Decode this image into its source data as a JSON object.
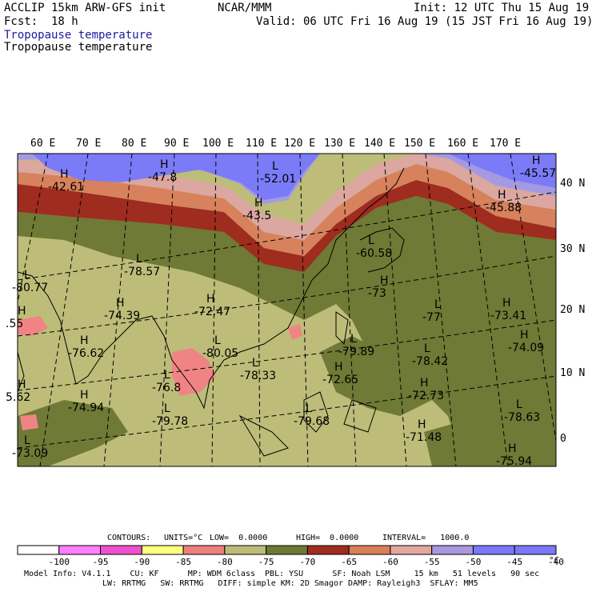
{
  "header": {
    "model": "ACCLIP 15km ARW-GFS init",
    "org": "NCAR/MMM",
    "init": "Init: 12 UTC Thu 15 Aug 19",
    "fcst_label": "Fcst:",
    "fcst_value": "18 h",
    "valid": "Valid: 06 UTC Fri 16 Aug 19 (15 JST Fri 16 Aug 19)",
    "field_title_1": "Tropopause temperature",
    "field_title_2": "Tropopause temperature"
  },
  "lon_ticks": [
    "60 E",
    "70 E",
    "80 E",
    "90 E",
    "100 E",
    "110 E",
    "120 E",
    "130 E",
    "140 E",
    "150 E",
    "160 E",
    "170 E"
  ],
  "lat_ticks": [
    "40 N",
    "30 N",
    "20 N",
    "10 N",
    "0"
  ],
  "extrema": [
    {
      "type": "H",
      "value": "-42.61"
    },
    {
      "type": "H",
      "value": "-47.8"
    },
    {
      "type": "L",
      "value": "-52.01"
    },
    {
      "type": "H",
      "value": "-43.5"
    },
    {
      "type": "H",
      "value": "-45.57"
    },
    {
      "type": "H",
      "value": "-45.88"
    },
    {
      "type": "L",
      "value": "-60.58"
    },
    {
      "type": "L",
      "value": "-78.57"
    },
    {
      "type": "L",
      "value": "-80.77"
    },
    {
      "type": "H",
      "value": "-74.39"
    },
    {
      "type": "H",
      "value": "-72.47"
    },
    {
      "type": "H",
      "value": "-73"
    },
    {
      "type": "H",
      "value": "-73.41"
    },
    {
      "type": "L",
      "value": "-77"
    },
    {
      "type": "L",
      "value": "-79.89"
    },
    {
      "type": "L",
      "value": "-80.05"
    },
    {
      "type": "H",
      "value": "-76.62"
    },
    {
      "type": "L",
      "value": "-76.8"
    },
    {
      "type": "L",
      "value": "-78.33"
    },
    {
      "type": "H",
      "value": "-72.65"
    },
    {
      "type": "L",
      "value": "-78.42"
    },
    {
      "type": "H",
      "value": "-74.09"
    },
    {
      "type": "H",
      "value": "-72.73"
    },
    {
      "type": "L",
      "value": "-78.63"
    },
    {
      "type": "H",
      "value": "-74.94"
    },
    {
      "type": "L",
      "value": "-79.78"
    },
    {
      "type": "L",
      "value": "-79.68"
    },
    {
      "type": "H",
      "value": "-71.48"
    },
    {
      "type": "L",
      "value": "-73.09"
    },
    {
      "type": "H",
      "value": "-75.94"
    },
    {
      "type": "H",
      "value": "5.62"
    },
    {
      "type": "H",
      "value": ".55"
    }
  ],
  "contours_line": {
    "label": "CONTOURS:",
    "units": "UNITS=°C",
    "low": "LOW=  0.0000",
    "high": "HIGH=  0.0000",
    "interval": "INTERVAL=   1000.0"
  },
  "colorbar": {
    "labels": [
      "-100",
      "-95",
      "-90",
      "-85",
      "-80",
      "-75",
      "-70",
      "-65",
      "-60",
      "-55",
      "-50",
      "-45",
      "-40"
    ],
    "unit": "°C",
    "colors": [
      "#ffffff",
      "#ff80ff",
      "#f050d0",
      "#ffff80",
      "#f08080",
      "#bcbc78",
      "#6e7a34",
      "#a02c20",
      "#d88058",
      "#e0a8a0",
      "#a898e0",
      "#7878f8",
      "#7878f8"
    ]
  },
  "model_info": {
    "line1": "Model Info: V4.1.1    CU: KF      MP: WDM 6class  PBL: YSU      SF: Noah LSM     15 km   51 levels   90 sec",
    "line2": "LW: RRTMG   SW: RRTMG   DIFF: simple KM: 2D Smagor DAMP: Rayleigh3  SFLAY: MM5"
  },
  "colors": {
    "blue_high": "#7b7bf8",
    "lavender": "#a59ae2",
    "pink_tan": "#dba7a0",
    "orange": "#d7825d",
    "dark_red": "#9e2c1f",
    "olive_dark": "#6e7a35",
    "olive_light": "#bdbd79",
    "salmon": "#f08484"
  }
}
